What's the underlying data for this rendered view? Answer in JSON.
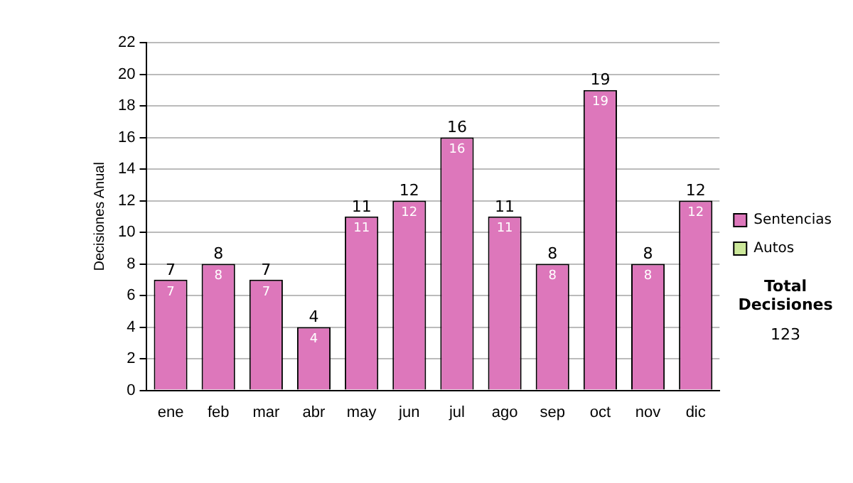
{
  "chart_data": {
    "type": "bar",
    "stacked": true,
    "ylabel": "Decisiones Anual",
    "categories": [
      "ene",
      "feb",
      "mar",
      "abr",
      "may",
      "jun",
      "jul",
      "ago",
      "sep",
      "oct",
      "nov",
      "dic"
    ],
    "series": [
      {
        "name": "Sentencias",
        "color": "#dd77bb",
        "values": [
          7,
          8,
          7,
          4,
          11,
          12,
          16,
          11,
          8,
          19,
          8,
          12
        ],
        "value_labels": [
          "7",
          "8",
          "7",
          "4",
          "11",
          "12",
          "16",
          "11",
          "8",
          "19",
          "8",
          "12"
        ]
      },
      {
        "name": "Autos",
        "color": "#cce89a",
        "values": [
          0,
          0,
          0,
          0,
          0,
          0,
          0,
          0,
          0,
          0,
          0,
          0
        ]
      }
    ],
    "totals": [
      "7",
      "8",
      "7",
      "4",
      "11",
      "12",
      "16",
      "11",
      "8",
      "19",
      "8",
      "12"
    ],
    "ylim": [
      0,
      22
    ],
    "yticks": [
      0,
      2,
      4,
      6,
      8,
      10,
      12,
      14,
      16,
      18,
      20,
      22
    ],
    "grid": "y",
    "legend": "right",
    "annotations": [
      "Total Decisiones",
      "123"
    ]
  }
}
